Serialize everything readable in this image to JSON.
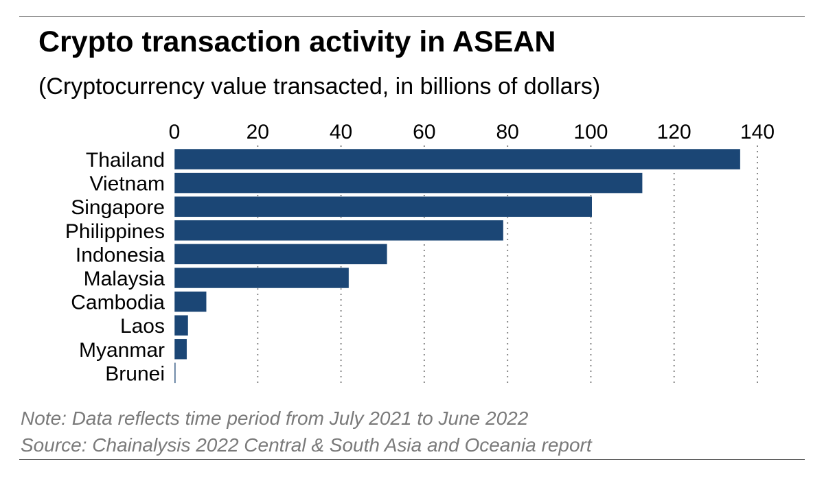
{
  "title": "Crypto transaction activity in ASEAN",
  "subtitle": "(Cryptocurrency value transacted, in billions of dollars)",
  "note": "Note: Data reflects time period from July 2021 to June 2022",
  "source": "Source: Chainalysis 2022 Central & South Asia and Oceania report",
  "colors": {
    "bar": "#1b4675",
    "gridline": "#888888",
    "note_text": "#7a7a7a"
  },
  "chart_data": {
    "type": "bar",
    "orientation": "horizontal",
    "title": "Crypto transaction activity in ASEAN",
    "subtitle": "(Cryptocurrency value transacted, in billions of dollars)",
    "xlabel": "",
    "ylabel": "",
    "xlim": [
      0,
      140
    ],
    "x_ticks": [
      0,
      20,
      40,
      60,
      80,
      100,
      120,
      140
    ],
    "x_axis_position": "top",
    "grid": "vertical dotted",
    "categories": [
      "Thailand",
      "Vietnam",
      "Singapore",
      "Philippines",
      "Indonesia",
      "Malaysia",
      "Cambodia",
      "Laos",
      "Myanmar",
      "Brunei"
    ],
    "values": [
      135.9,
      112.4,
      100.3,
      79.0,
      51.1,
      41.9,
      7.7,
      3.3,
      3.0,
      0.3
    ]
  }
}
